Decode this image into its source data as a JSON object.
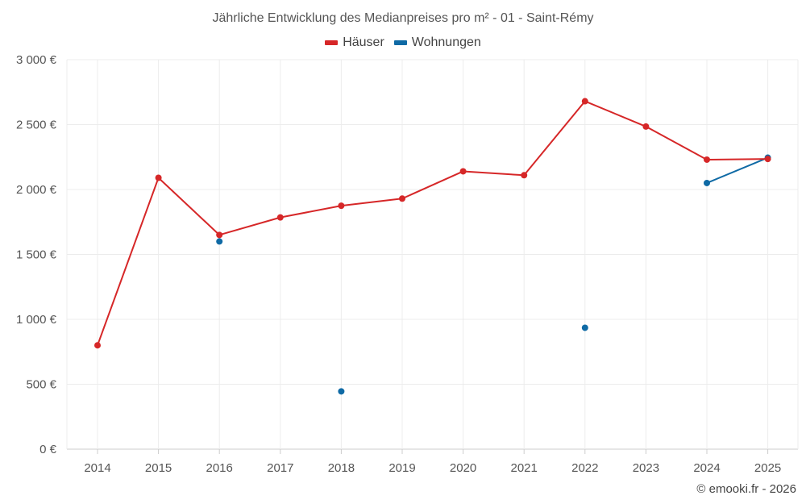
{
  "chart_data": {
    "type": "line",
    "title": "Jährliche Entwicklung des Medianpreises pro m² - 01 - Saint-Rémy",
    "categories": [
      "2014",
      "2015",
      "2016",
      "2017",
      "2018",
      "2019",
      "2020",
      "2021",
      "2022",
      "2023",
      "2024",
      "2025"
    ],
    "ylim": [
      0,
      3000
    ],
    "yticks": [
      0,
      500,
      1000,
      1500,
      2000,
      2500,
      3000
    ],
    "ytick_labels": [
      "0 €",
      "500 €",
      "1 000 €",
      "1 500 €",
      "2 000 €",
      "2 500 €",
      "3 000 €"
    ],
    "grid": true,
    "legend_position": "top-center",
    "series": [
      {
        "name": "Häuser",
        "color": "#d62728",
        "values": [
          800,
          2090,
          1650,
          1785,
          1875,
          1930,
          2140,
          2110,
          2680,
          2485,
          2230,
          2235
        ]
      },
      {
        "name": "Wohnungen",
        "color": "#0f6aa5",
        "values": [
          null,
          null,
          1600,
          null,
          445,
          null,
          null,
          null,
          935,
          null,
          2050,
          2245
        ]
      }
    ]
  },
  "footer": {
    "copyright": "© emooki.fr - 2026"
  }
}
